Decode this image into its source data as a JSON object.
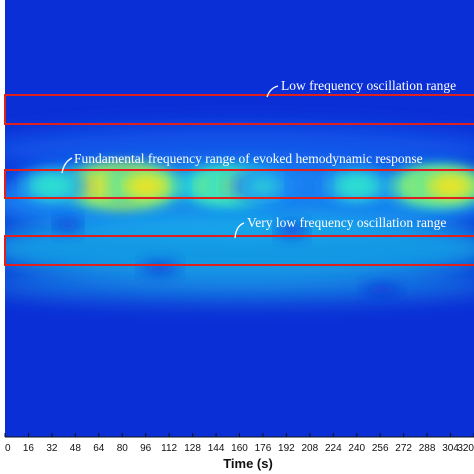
{
  "chart_data": {
    "type": "heatmap",
    "title": "",
    "xlabel": "Time (s)",
    "ylabel": "",
    "x_ticks": [
      "0",
      "16",
      "32",
      "48",
      "64",
      "80",
      "96",
      "112",
      "128",
      "144",
      "160",
      "176",
      "192",
      "208",
      "224",
      "240",
      "256",
      "272",
      "288",
      "304",
      "320"
    ],
    "xlim": [
      0,
      320
    ],
    "colormap": "jet",
    "grid": false,
    "hotspots": [
      {
        "x": 80,
        "level": 1.0
      },
      {
        "x": 64,
        "level": 0.8
      },
      {
        "x": 96,
        "level": 0.75
      },
      {
        "x": 144,
        "level": 0.55
      },
      {
        "x": 160,
        "level": 0.55
      },
      {
        "x": 32,
        "level": 0.45
      },
      {
        "x": 176,
        "level": 0.35
      },
      {
        "x": 240,
        "level": 0.45
      },
      {
        "x": 288,
        "level": 0.7
      },
      {
        "x": 304,
        "level": 0.8
      }
    ],
    "annotations": [
      {
        "text": "Low frequency oscillation range",
        "band": "low-frequency"
      },
      {
        "text": "Fundamental frequency range of evoked hemodynamic response",
        "band": "fundamental"
      },
      {
        "text": "Very low frequency oscillation range",
        "band": "very-low-frequency"
      }
    ]
  },
  "colors": {
    "background": "#0b2fd6",
    "box": "#e0201c",
    "annotation_text": "#ffffff"
  }
}
